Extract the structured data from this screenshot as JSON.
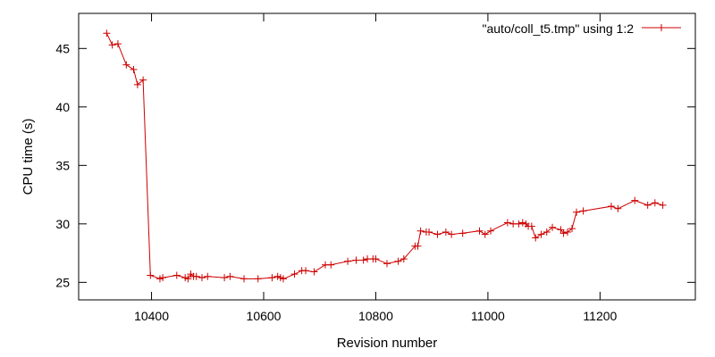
{
  "chart_data": {
    "type": "line",
    "title": "",
    "xlabel": "Revision number",
    "ylabel": "CPU time (s)",
    "xlim": [
      10270,
      11370.0
    ],
    "ylim": [
      23.5,
      48
    ],
    "xticks": [
      10400,
      10600,
      10800,
      11000,
      11200
    ],
    "yticks": [
      25,
      30,
      35,
      40,
      45
    ],
    "grid": false,
    "legend_position": "top-right",
    "series": [
      {
        "name": "\"auto/coll_t5.tmp\" using 1:2",
        "color": "#cc0000",
        "marker": "plus",
        "points": [
          [
            10320,
            46.3
          ],
          [
            10330,
            45.3
          ],
          [
            10340,
            45.4
          ],
          [
            10355,
            43.6
          ],
          [
            10368,
            43.2
          ],
          [
            10375,
            41.9
          ],
          [
            10385,
            42.3
          ],
          [
            10398,
            25.6
          ],
          [
            10415,
            25.3
          ],
          [
            10420,
            25.4
          ],
          [
            10445,
            25.6
          ],
          [
            10460,
            25.4
          ],
          [
            10465,
            25.3
          ],
          [
            10470,
            25.7
          ],
          [
            10475,
            25.5
          ],
          [
            10480,
            25.5
          ],
          [
            10490,
            25.4
          ],
          [
            10500,
            25.5
          ],
          [
            10530,
            25.4
          ],
          [
            10540,
            25.5
          ],
          [
            10565,
            25.3
          ],
          [
            10590,
            25.3
          ],
          [
            10615,
            25.4
          ],
          [
            10625,
            25.5
          ],
          [
            10630,
            25.4
          ],
          [
            10635,
            25.3
          ],
          [
            10655,
            25.7
          ],
          [
            10668,
            26.0
          ],
          [
            10675,
            26.0
          ],
          [
            10690,
            25.9
          ],
          [
            10710,
            26.5
          ],
          [
            10720,
            26.5
          ],
          [
            10750,
            26.8
          ],
          [
            10765,
            26.9
          ],
          [
            10778,
            26.9
          ],
          [
            10785,
            27.0
          ],
          [
            10795,
            27.0
          ],
          [
            10800,
            27.0
          ],
          [
            10820,
            26.6
          ],
          [
            10840,
            26.8
          ],
          [
            10850,
            27.0
          ],
          [
            10870,
            28.1
          ],
          [
            10875,
            28.1
          ],
          [
            10880,
            29.4
          ],
          [
            10890,
            29.3
          ],
          [
            10895,
            29.3
          ],
          [
            10910,
            29.1
          ],
          [
            10925,
            29.3
          ],
          [
            10935,
            29.1
          ],
          [
            10955,
            29.2
          ],
          [
            10985,
            29.4
          ],
          [
            10995,
            29.1
          ],
          [
            11005,
            29.4
          ],
          [
            11035,
            30.1
          ],
          [
            11045,
            30.0
          ],
          [
            11055,
            30.0
          ],
          [
            11062,
            30.1
          ],
          [
            11068,
            30.0
          ],
          [
            11072,
            29.8
          ],
          [
            11078,
            29.8
          ],
          [
            11085,
            28.8
          ],
          [
            11095,
            29.1
          ],
          [
            11105,
            29.3
          ],
          [
            11115,
            29.7
          ],
          [
            11130,
            29.5
          ],
          [
            11135,
            29.2
          ],
          [
            11142,
            29.3
          ],
          [
            11150,
            29.6
          ],
          [
            11158,
            31.0
          ],
          [
            11170,
            31.1
          ],
          [
            11220,
            31.5
          ],
          [
            11232,
            31.3
          ],
          [
            11262,
            32.0
          ],
          [
            11285,
            31.6
          ],
          [
            11298,
            31.8
          ],
          [
            11312,
            31.6
          ]
        ]
      }
    ]
  }
}
